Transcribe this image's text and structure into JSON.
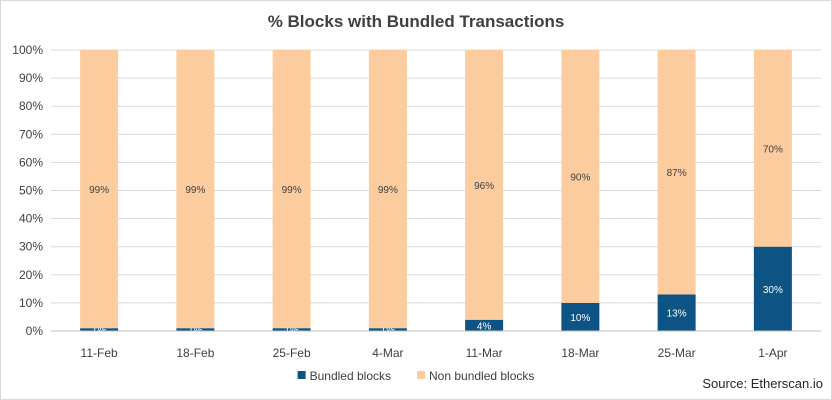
{
  "chart_data": {
    "type": "bar",
    "stacked": true,
    "title": "% Blocks with Bundled Transactions",
    "xlabel": "",
    "ylabel": "",
    "categories": [
      "11-Feb",
      "18-Feb",
      "25-Feb",
      "4-Mar",
      "11-Mar",
      "18-Mar",
      "25-Mar",
      "1-Apr"
    ],
    "ylim": [
      0,
      100
    ],
    "y_ticks": [
      "0%",
      "10%",
      "20%",
      "30%",
      "40%",
      "50%",
      "60%",
      "70%",
      "80%",
      "90%",
      "100%"
    ],
    "grid": true,
    "legend_position": "bottom",
    "series": [
      {
        "name": "Bundled blocks",
        "color": "#0d5384",
        "label_color": "#ffffff",
        "values": [
          1,
          1,
          1,
          1,
          4,
          10,
          13,
          30
        ],
        "labels": [
          "1%",
          "1%",
          "1%",
          "1%",
          "4%",
          "10%",
          "13%",
          "30%"
        ]
      },
      {
        "name": "Non bundled blocks",
        "color": "#fdcc9e",
        "label_color": "#404040",
        "values": [
          99,
          99,
          99,
          99,
          96,
          90,
          87,
          70
        ],
        "labels": [
          "99%",
          "99%",
          "99%",
          "99%",
          "96%",
          "90%",
          "87%",
          "70%"
        ]
      }
    ],
    "source_note": "Source: Etherscan.io"
  }
}
